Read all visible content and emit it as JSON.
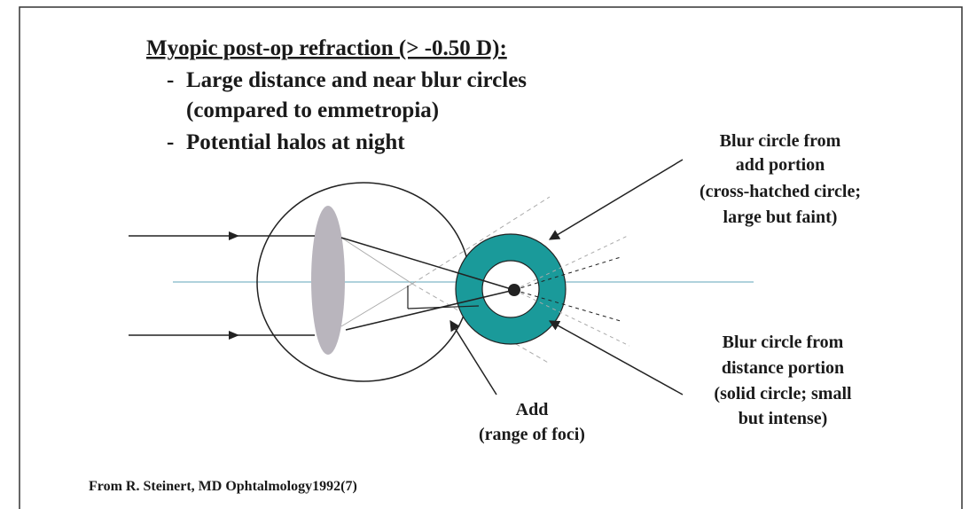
{
  "title": "Myopic post-op refraction (> -0.50 D):",
  "bullets": [
    {
      "lines": [
        "Large distance and near blur circles",
        "(compared to emmetropia)"
      ]
    },
    {
      "lines": [
        "Potential halos at night"
      ]
    }
  ],
  "labels": {
    "add_blur": [
      "Blur circle from",
      "add portion",
      "(cross-hatched circle;",
      "large but faint)"
    ],
    "distance_blur": [
      "Blur circle from",
      "distance portion",
      "(solid circle; small",
      "but intense)"
    ],
    "add": [
      "Add",
      "(range of foci)"
    ]
  },
  "footer": "From R. Steinert, MD Ophtalmology1992(7)"
}
